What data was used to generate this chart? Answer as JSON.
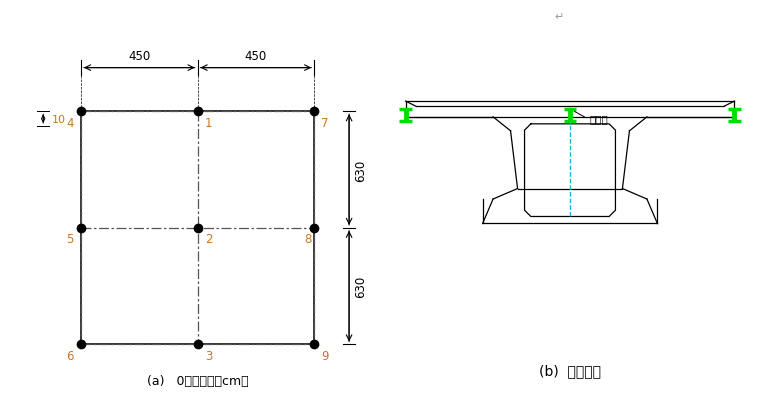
{
  "fig_width": 7.6,
  "fig_height": 4.14,
  "dpi": 100,
  "bg_color": "#ffffff",
  "label_a": "(a)   0号块单位：cm）",
  "label_b": "(b)  支点断面",
  "dim_450_left": "450",
  "dim_450_right": "450",
  "dim_630_top": "630",
  "dim_630_bot": "630",
  "dim_10": "10",
  "node_color": "#000000",
  "dash_color": "#555555",
  "solid_color": "#000000",
  "num_color": "#cc7722",
  "green_color": "#00dd00",
  "cyan_color": "#00bbcc",
  "note_text": "量测点",
  "watermark": "↵"
}
